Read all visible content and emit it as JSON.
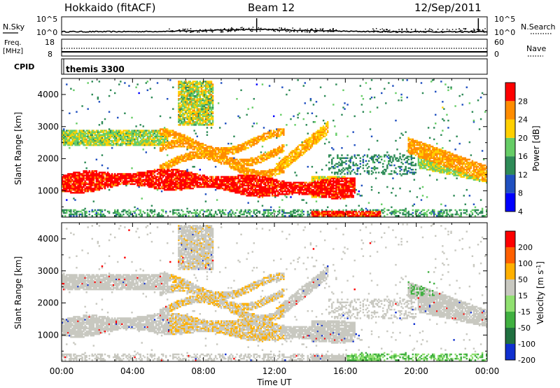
{
  "header": {
    "title": "Hokkaido (fitACF)",
    "beam": "Beam 12",
    "date": "12/Sep/2011"
  },
  "status_panel": {
    "nsky_label": "N.Sky",
    "nsky_ticks": [
      "10^5",
      "10^0"
    ],
    "nsearch_label": "N.Search",
    "nsearch_ticks": [
      "10^5",
      "10^0"
    ],
    "freq_label": "Freq.",
    "freq_unit": "[MHz]",
    "freq_ticks": [
      "18",
      "8"
    ],
    "nave_label": "Nave",
    "nave_ticks": [
      "60",
      "0"
    ],
    "cpid_label": "CPID",
    "cpid_value": "themis 3300"
  },
  "chart_data": [
    {
      "type": "heatmap",
      "ylabel": "Slant Range [km]",
      "yticks": [
        "4000",
        "3000",
        "2000",
        "1000"
      ],
      "ylim": [
        180,
        4500
      ],
      "colorbar_label": "Power [dB]",
      "colorbar_ticks": [
        "28",
        "24",
        "20",
        "16",
        "12",
        "8",
        "4"
      ],
      "colors": [
        "#0000ff",
        "#2050c0",
        "#2e8b57",
        "#66cd66",
        "#ffd000",
        "#ff8c00",
        "#ff0000"
      ]
    },
    {
      "type": "heatmap",
      "ylabel": "Slant Range [km]",
      "yticks": [
        "4000",
        "3000",
        "2000",
        "1000"
      ],
      "ylim": [
        180,
        4500
      ],
      "colorbar_label": "Velocity",
      "colorbar_unit": "[m s",
      "colorbar_unit_exp": "-1",
      "colorbar_ticks": [
        "200",
        "100",
        "50",
        "15",
        "-15",
        "-50",
        "-100",
        "-200"
      ],
      "colors": [
        "#1030d0",
        "#207040",
        "#40b040",
        "#90e070",
        "#c8c8c0",
        "#ffb000",
        "#ff6000",
        "#ff0000"
      ]
    }
  ],
  "x_axis": {
    "label": "Time UT",
    "ticks": [
      "00:00",
      "04:00",
      "08:00",
      "12:00",
      "16:00",
      "20:00",
      "00:00"
    ]
  }
}
